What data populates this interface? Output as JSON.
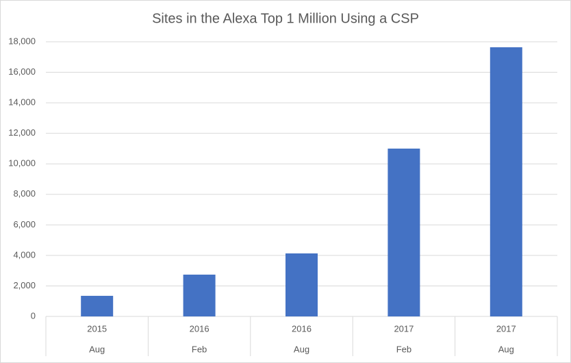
{
  "chart_data": {
    "type": "bar",
    "title": "Sites in the Alexa Top 1 Million Using a CSP",
    "categories": [
      {
        "year": "2015",
        "month": "Aug"
      },
      {
        "year": "2016",
        "month": "Feb"
      },
      {
        "year": "2016",
        "month": "Aug"
      },
      {
        "year": "2017",
        "month": "Feb"
      },
      {
        "year": "2017",
        "month": "Aug"
      }
    ],
    "values": [
      1350,
      2740,
      4130,
      11000,
      17640
    ],
    "color": "#4472c4",
    "ylim": [
      0,
      18000
    ],
    "yticks": [
      0,
      {
        "value": 2000,
        "label": "2,000"
      },
      {
        "value": 4000,
        "label": "4,000"
      },
      {
        "value": 6000,
        "label": "6,000"
      },
      {
        "value": 8000,
        "label": "8,000"
      },
      {
        "value": 10000,
        "label": "10,000"
      },
      {
        "value": 12000,
        "label": "12,000"
      },
      {
        "value": 14000,
        "label": "14,000"
      },
      {
        "value": 16000,
        "label": "16,000"
      },
      {
        "value": 18000,
        "label": "18,000"
      }
    ],
    "grid": true
  }
}
